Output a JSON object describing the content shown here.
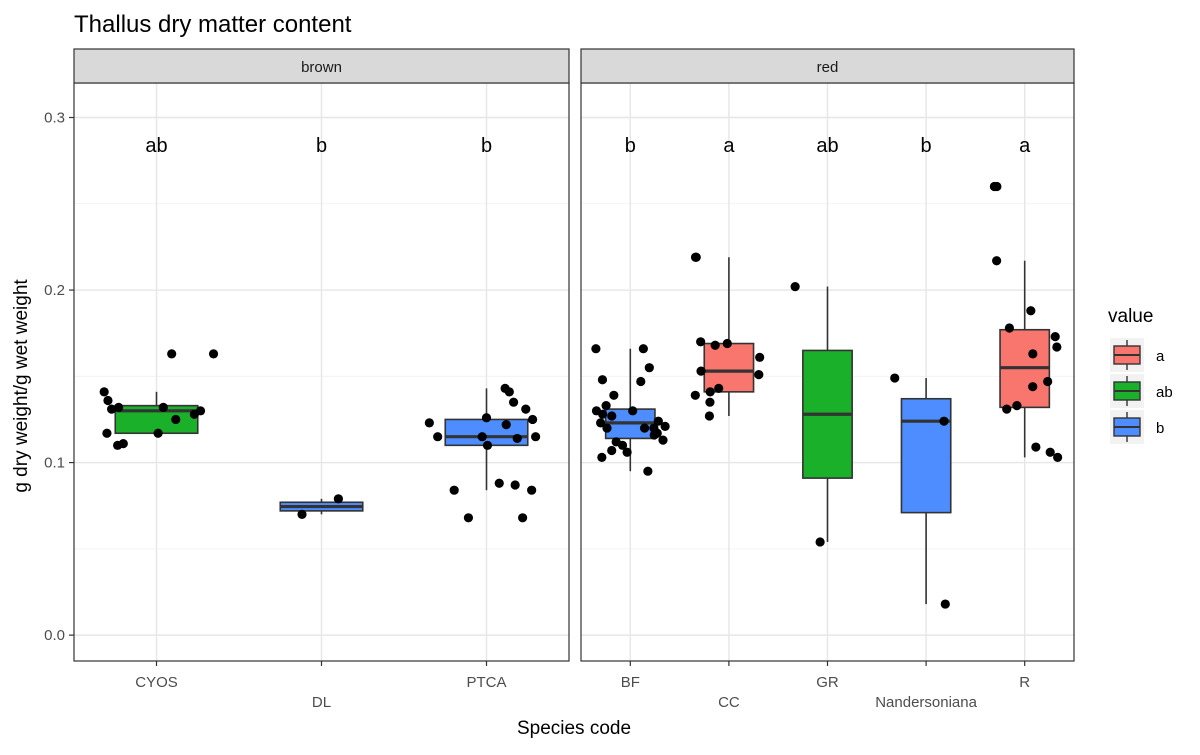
{
  "chart_data": {
    "type": "boxplot",
    "title": "Thallus dry matter content",
    "xlabel": "Species code",
    "ylabel": "g dry weight/g wet weight",
    "ylim": [
      -0.015,
      0.32
    ],
    "yticks": [
      0.0,
      0.1,
      0.2,
      0.3
    ],
    "ytick_labels": [
      "0.0",
      "0.1",
      "0.2",
      "0.3"
    ],
    "grid": true,
    "legend": {
      "title": "value",
      "position": "right",
      "entries": [
        {
          "label": "a",
          "color": "#F8766D"
        },
        {
          "label": "ab",
          "color": "#1AB02A"
        },
        {
          "label": "b",
          "color": "#4D8DFF"
        }
      ]
    },
    "facets": [
      {
        "label": "brown",
        "categories": [
          {
            "name": "CYOS",
            "group": "ab",
            "label_row": 1,
            "box": {
              "q1": 0.117,
              "median": 0.13,
              "q3": 0.133,
              "lower": 0.116,
              "upper": 0.141
            },
            "points": [
              0.163,
              0.163,
              0.141,
              0.136,
              0.132,
              0.132,
              0.131,
              0.13,
              0.128,
              0.125,
              0.117,
              0.117,
              0.111,
              0.11
            ]
          },
          {
            "name": "DL",
            "group": "b",
            "label_row": 2,
            "box": {
              "q1": 0.072,
              "median": 0.0745,
              "q3": 0.077,
              "lower": 0.07,
              "upper": 0.079
            },
            "points": [
              0.079,
              0.07
            ]
          },
          {
            "name": "PTCA",
            "group": "b",
            "label_row": 1,
            "box": {
              "q1": 0.11,
              "median": 0.115,
              "q3": 0.125,
              "lower": 0.084,
              "upper": 0.143
            },
            "points": [
              0.143,
              0.141,
              0.135,
              0.131,
              0.126,
              0.125,
              0.123,
              0.122,
              0.115,
              0.115,
              0.115,
              0.114,
              0.11,
              0.088,
              0.087,
              0.084,
              0.084,
              0.068,
              0.068
            ]
          }
        ]
      },
      {
        "label": "red",
        "categories": [
          {
            "name": "BF",
            "group": "b",
            "label_row": 1,
            "box": {
              "q1": 0.114,
              "median": 0.123,
              "q3": 0.131,
              "lower": 0.095,
              "upper": 0.166
            },
            "points": [
              0.166,
              0.166,
              0.155,
              0.148,
              0.147,
              0.139,
              0.133,
              0.13,
              0.13,
              0.128,
              0.127,
              0.124,
              0.123,
              0.121,
              0.12,
              0.12,
              0.12,
              0.117,
              0.116,
              0.113,
              0.112,
              0.11,
              0.107,
              0.106,
              0.103,
              0.095
            ]
          },
          {
            "name": "CC",
            "group": "a",
            "label_row": 2,
            "box": {
              "q1": 0.141,
              "median": 0.153,
              "q3": 0.169,
              "lower": 0.127,
              "upper": 0.219
            },
            "points": [
              0.219,
              0.219,
              0.17,
              0.169,
              0.168,
              0.161,
              0.153,
              0.151,
              0.143,
              0.141,
              0.139,
              0.135,
              0.127
            ]
          },
          {
            "name": "GR",
            "group": "ab",
            "label_row": 1,
            "box": {
              "q1": 0.091,
              "median": 0.128,
              "q3": 0.165,
              "lower": 0.054,
              "upper": 0.202
            },
            "points": [
              0.202,
              0.054
            ]
          },
          {
            "name": "Nandersoniana",
            "group": "b",
            "label_row": 2,
            "box": {
              "q1": 0.071,
              "median": 0.124,
              "q3": 0.137,
              "lower": 0.018,
              "upper": 0.149
            },
            "points": [
              0.149,
              0.124,
              0.018
            ]
          },
          {
            "name": "R",
            "group": "a",
            "label_row": 1,
            "box": {
              "q1": 0.132,
              "median": 0.155,
              "q3": 0.177,
              "lower": 0.103,
              "upper": 0.217
            },
            "points": [
              0.26,
              0.26,
              0.217,
              0.188,
              0.178,
              0.173,
              0.167,
              0.163,
              0.147,
              0.144,
              0.133,
              0.131,
              0.109,
              0.106,
              0.103
            ]
          }
        ]
      }
    ]
  }
}
